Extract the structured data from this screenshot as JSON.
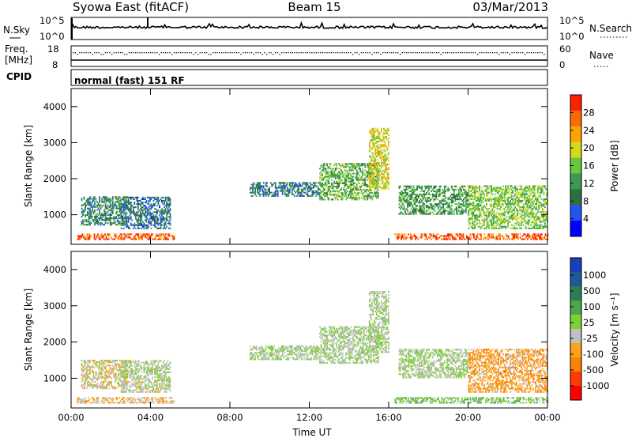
{
  "header": {
    "title": "Syowa East (fitACF)",
    "beam": "Beam 15",
    "date": "03/Mar/2013"
  },
  "status_panel": {
    "nsky_label": "N.Sky",
    "nsky_ticks": [
      "10^5",
      "10^0"
    ],
    "nsearch_label": "N.Search",
    "freq_label_1": "Freq.",
    "freq_label_2": "[MHz]",
    "freq_ticks": [
      "18",
      "8"
    ],
    "nave_ticks": [
      "60",
      "0"
    ],
    "nave_label": "Nave",
    "cpid_label": "CPID",
    "cpid_value": "normal (fast) 151 RF"
  },
  "colors": {
    "power_scale": [
      "#0000ff",
      "#2255ee",
      "#2f6f3f",
      "#3c9a55",
      "#66c83a",
      "#d8d81a",
      "#ffa500",
      "#ff6a00",
      "#ff2000"
    ],
    "velocity_scale": [
      "#1a3fb8",
      "#1e5a9a",
      "#2e7d5a",
      "#4aa84a",
      "#7fcf3a",
      "#c0c0c0",
      "#ffa31a",
      "#ff7f00",
      "#ff3c00",
      "#ff0000"
    ]
  },
  "chart_data": [
    {
      "type": "heatmap",
      "name": "power",
      "xlabel": "",
      "ylabel": "Slant Range [km]",
      "x_ticks": [
        "00:00",
        "04:00",
        "08:00",
        "12:00",
        "16:00",
        "20:00",
        "00:00"
      ],
      "y_ticks": [
        1000,
        2000,
        3000,
        4000
      ],
      "xlim_hours": [
        0,
        24
      ],
      "ylim": [
        180,
        4500
      ],
      "colorbar": {
        "label": "Power [dB]",
        "ticks": [
          4,
          8,
          12,
          16,
          20,
          24,
          28
        ],
        "range": [
          0,
          32
        ]
      },
      "echo_regions": [
        {
          "t0": 0.3,
          "t1": 5.2,
          "r0": 300,
          "r1": 450,
          "level": 28
        },
        {
          "t0": 0.5,
          "t1": 2.8,
          "r0": 700,
          "r1": 1500,
          "level": 10
        },
        {
          "t0": 2.5,
          "t1": 5.0,
          "r0": 600,
          "r1": 1500,
          "level": 8
        },
        {
          "t0": 9.0,
          "t1": 12.5,
          "r0": 1500,
          "r1": 1900,
          "level": 9
        },
        {
          "t0": 12.5,
          "t1": 15.5,
          "r0": 1400,
          "r1": 2400,
          "level": 14
        },
        {
          "t0": 15.0,
          "t1": 16.0,
          "r0": 1700,
          "r1": 3400,
          "level": 20
        },
        {
          "t0": 16.3,
          "t1": 24.0,
          "r0": 300,
          "r1": 450,
          "level": 28
        },
        {
          "t0": 16.5,
          "t1": 20.0,
          "r0": 1000,
          "r1": 1800,
          "level": 12
        },
        {
          "t0": 20.0,
          "t1": 24.0,
          "r0": 600,
          "r1": 1800,
          "level": 16
        }
      ]
    },
    {
      "type": "heatmap",
      "name": "velocity",
      "xlabel": "Time UT",
      "ylabel": "Slant Range [km]",
      "x_ticks": [
        "00:00",
        "04:00",
        "08:00",
        "12:00",
        "16:00",
        "20:00",
        "00:00"
      ],
      "y_ticks": [
        1000,
        2000,
        3000,
        4000
      ],
      "xlim_hours": [
        0,
        24
      ],
      "ylim": [
        180,
        4500
      ],
      "colorbar": {
        "label": "Velocity [m s⁻¹]",
        "ticks": [
          "1000",
          "500",
          "100",
          "25",
          "-25",
          "-100",
          "-500",
          "-1000"
        ],
        "range": [
          -1250,
          1250
        ]
      },
      "echo_regions": [
        {
          "t0": 0.3,
          "t1": 5.2,
          "r0": 300,
          "r1": 450,
          "level": -300
        },
        {
          "t0": 0.5,
          "t1": 2.8,
          "r0": 700,
          "r1": 1500,
          "level": -150
        },
        {
          "t0": 2.5,
          "t1": 5.0,
          "r0": 600,
          "r1": 1500,
          "level": -50
        },
        {
          "t0": 9.0,
          "t1": 12.5,
          "r0": 1500,
          "r1": 1900,
          "level": 0
        },
        {
          "t0": 12.5,
          "t1": 15.5,
          "r0": 1400,
          "r1": 2400,
          "level": 0
        },
        {
          "t0": 15.0,
          "t1": 16.0,
          "r0": 1700,
          "r1": 3400,
          "level": 0
        },
        {
          "t0": 16.3,
          "t1": 24.0,
          "r0": 300,
          "r1": 450,
          "level": 200
        },
        {
          "t0": 16.5,
          "t1": 20.0,
          "r0": 1000,
          "r1": 1800,
          "level": 0
        },
        {
          "t0": 20.0,
          "t1": 24.0,
          "r0": 600,
          "r1": 1800,
          "level": -400
        }
      ]
    }
  ]
}
